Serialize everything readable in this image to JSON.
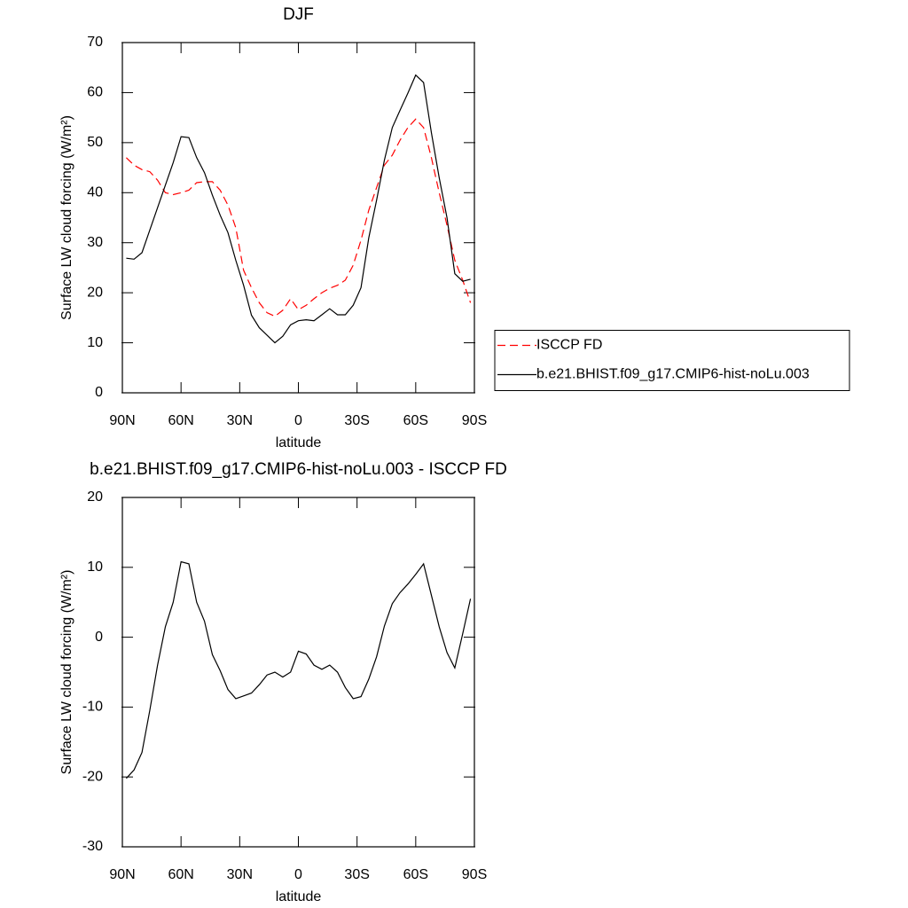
{
  "chart_data": [
    {
      "type": "line",
      "title": "DJF",
      "xlabel": "latitude",
      "ylabel": "Surface LW cloud forcing (W/m²)",
      "x": [
        88,
        84,
        80,
        76,
        72,
        68,
        64,
        60,
        56,
        52,
        48,
        44,
        40,
        36,
        32,
        28,
        24,
        20,
        16,
        12,
        8,
        4,
        0,
        -4,
        -8,
        -12,
        -16,
        -20,
        -24,
        -28,
        -32,
        -36,
        -40,
        -44,
        -48,
        -52,
        -56,
        -60,
        -64,
        -68,
        -72,
        -76,
        -80,
        -84,
        -88
      ],
      "xlim": [
        90,
        -90
      ],
      "xticks": [
        {
          "value": 90,
          "label": "90N"
        },
        {
          "value": 60,
          "label": "60N"
        },
        {
          "value": 30,
          "label": "30N"
        },
        0,
        {
          "value": -30,
          "label": "30S"
        },
        {
          "value": -60,
          "label": "60S"
        },
        {
          "value": -90,
          "label": "90S"
        }
      ],
      "ylim": [
        0,
        70
      ],
      "yticks": [
        0,
        10,
        20,
        30,
        40,
        50,
        60,
        70
      ],
      "legend": "right",
      "series": [
        {
          "name": "ISCCP FD",
          "color": "#ff0000",
          "line_style": "dashed",
          "values": [
            47,
            45.5,
            44.6,
            44.2,
            42.5,
            40,
            39.6,
            40,
            40.5,
            42,
            42.2,
            42.2,
            40.5,
            37.5,
            33,
            24.5,
            21,
            18,
            16,
            15.3,
            16.5,
            18.8,
            16.6,
            17.5,
            18.8,
            20,
            20.9,
            21.5,
            22.5,
            25.5,
            30.5,
            36.5,
            41,
            45.5,
            47.5,
            50.5,
            53,
            54.7,
            53,
            47,
            40,
            33.5,
            26.5,
            22.5,
            18
          ]
        },
        {
          "name": "b.e21.BHIST.f09_g17.CMIP6-hist-noLu.003",
          "color": "#000000",
          "line_style": "solid",
          "values": [
            26.9,
            26.7,
            28,
            32.5,
            37,
            41.5,
            46,
            51.2,
            51,
            47,
            44,
            39.5,
            35.5,
            32,
            26.5,
            21.5,
            15.5,
            13,
            11.5,
            10,
            11.3,
            13.6,
            14.4,
            14.6,
            14.4,
            15.6,
            16.8,
            15.6,
            15.6,
            17.5,
            21,
            31,
            38.5,
            46.5,
            53,
            56.5,
            59.9,
            63.5,
            62,
            52,
            43,
            35,
            23.8,
            22.3,
            22.7
          ]
        }
      ]
    },
    {
      "type": "line",
      "title": "b.e21.BHIST.f09_g17.CMIP6-hist-noLu.003 - ISCCP FD",
      "xlabel": "latitude",
      "ylabel": "Surface LW cloud forcing (W/m²)",
      "x": [
        88,
        84,
        80,
        76,
        72,
        68,
        64,
        60,
        56,
        52,
        48,
        44,
        40,
        36,
        32,
        28,
        24,
        20,
        16,
        12,
        8,
        4,
        0,
        -4,
        -8,
        -12,
        -16,
        -20,
        -24,
        -28,
        -32,
        -36,
        -40,
        -44,
        -48,
        -52,
        -56,
        -60,
        -64,
        -68,
        -72,
        -76,
        -80,
        -84,
        -88
      ],
      "xlim": [
        90,
        -90
      ],
      "xticks": [
        {
          "value": 90,
          "label": "90N"
        },
        {
          "value": 60,
          "label": "60N"
        },
        {
          "value": 30,
          "label": "30N"
        },
        0,
        {
          "value": -30,
          "label": "30S"
        },
        {
          "value": -60,
          "label": "60S"
        },
        {
          "value": -90,
          "label": "90S"
        }
      ],
      "ylim": [
        -30,
        20
      ],
      "yticks": [
        -30,
        -20,
        -10,
        0,
        10,
        20
      ],
      "series": [
        {
          "color": "#000000",
          "line_style": "solid",
          "values": [
            -20.2,
            -19,
            -16.5,
            -10.5,
            -4,
            1.5,
            5,
            10.8,
            10.5,
            5,
            2.3,
            -2.5,
            -4.8,
            -7.5,
            -8.8,
            -8.4,
            -8,
            -6.8,
            -5.4,
            -5,
            -5.7,
            -5,
            -2,
            -2.4,
            -4,
            -4.6,
            -4,
            -5,
            -7.2,
            -8.8,
            -8.5,
            -6,
            -2.8,
            1.6,
            4.8,
            6.4,
            7.6,
            9,
            10.5,
            6,
            1.5,
            -2.2,
            -4.4,
            0.5,
            5.5
          ]
        }
      ]
    }
  ]
}
